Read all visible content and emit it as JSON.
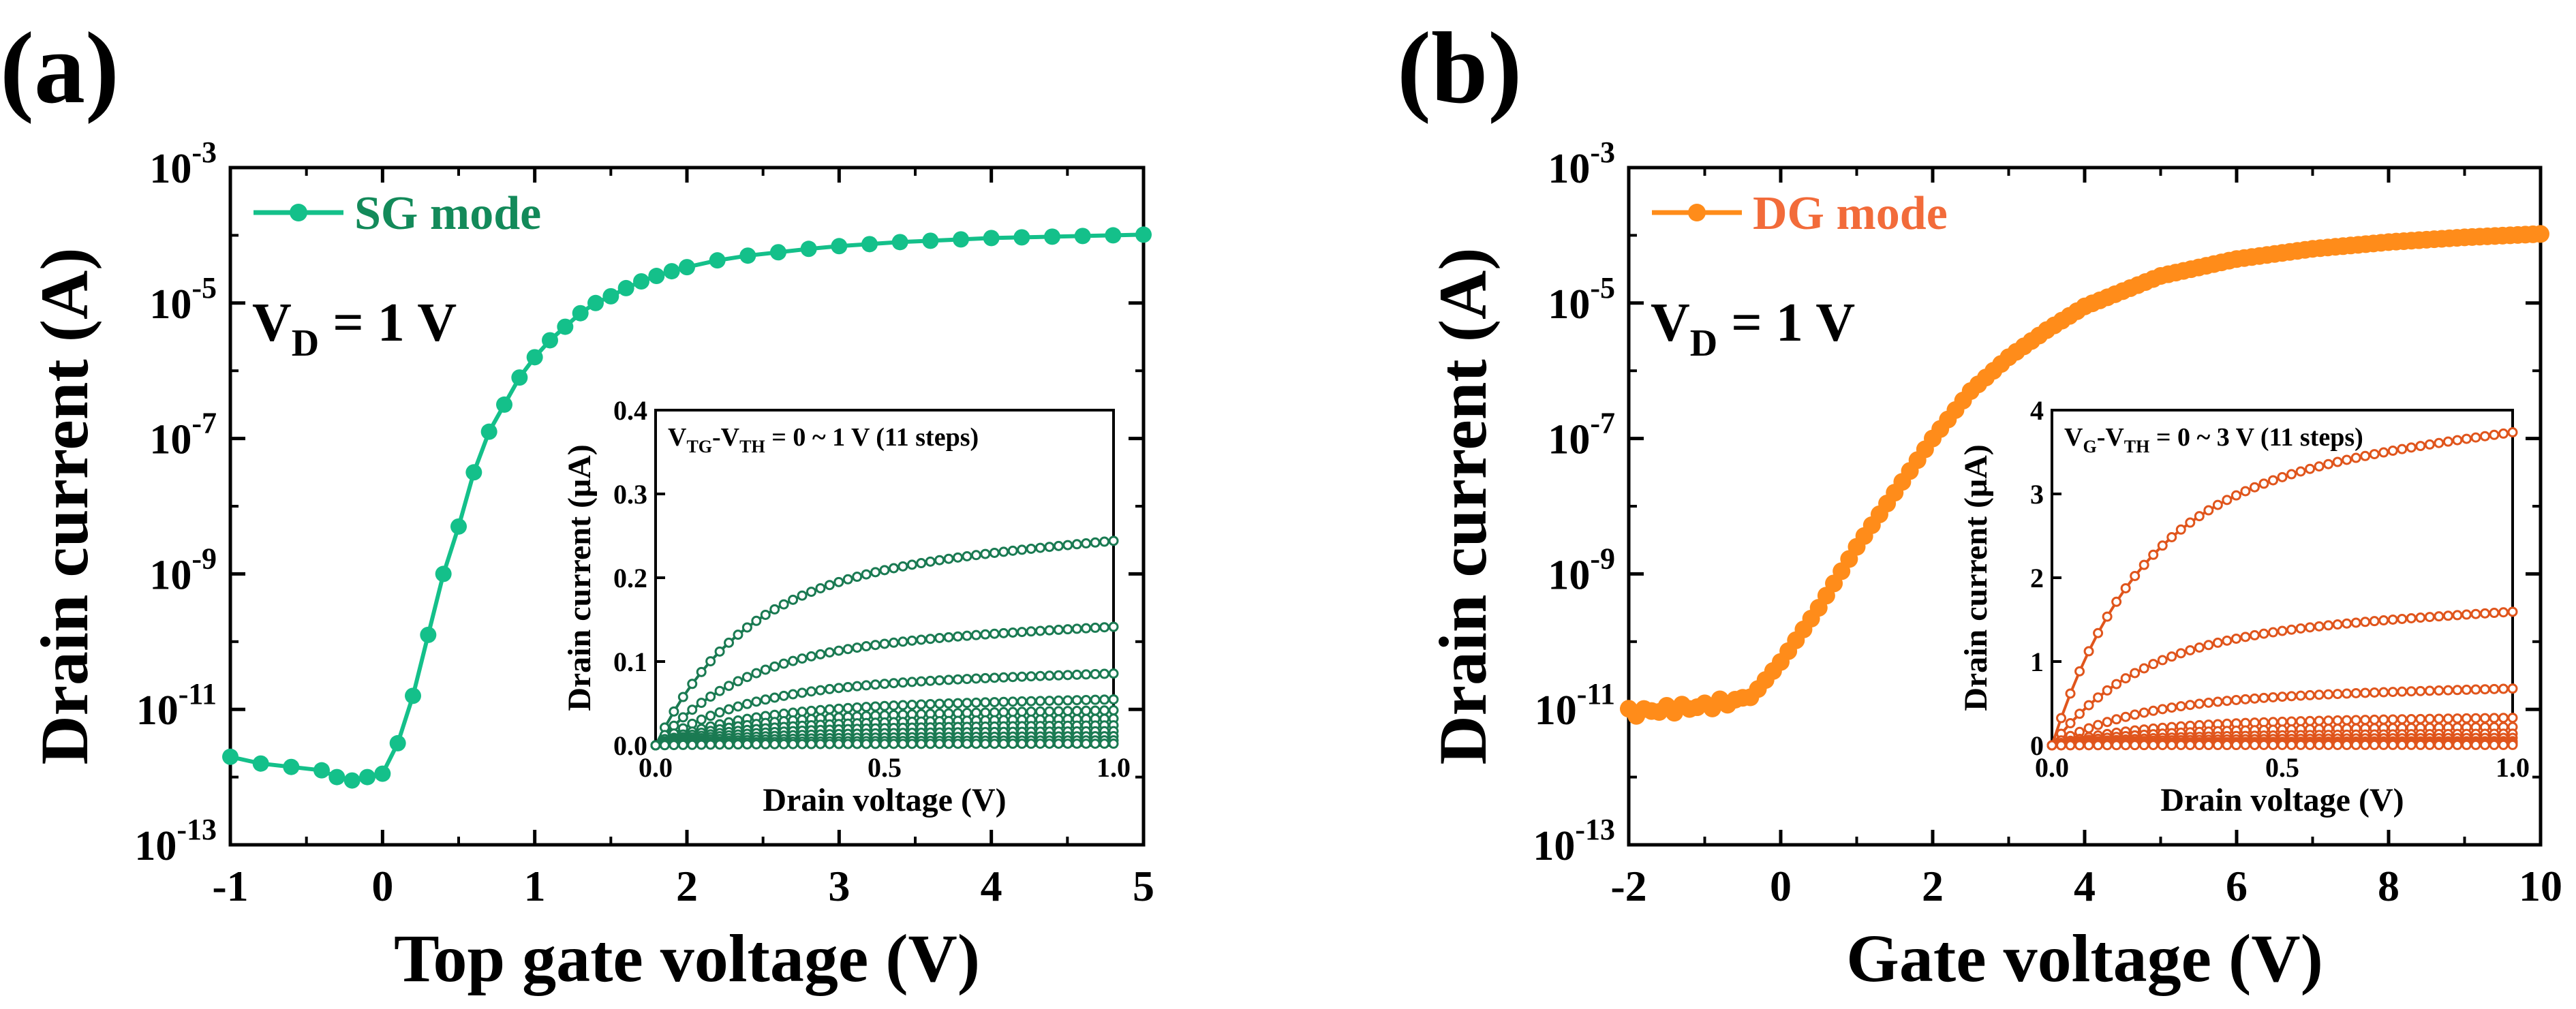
{
  "chart_data": [
    {
      "type": "line",
      "panel_label": "(a)",
      "title": "",
      "xlabel": "Top gate voltage (V)",
      "ylabel": "Drain current (A)",
      "xlim": [
        -1,
        5
      ],
      "ylim_log10": [
        -13,
        -3
      ],
      "y_scale": "log",
      "x_ticks": [
        -1,
        0,
        1,
        2,
        3,
        4,
        5
      ],
      "x_tick_labels": [
        "-1",
        "0",
        "1",
        "2",
        "3",
        "4",
        "5"
      ],
      "y_ticks_log10": [
        -13,
        -11,
        -9,
        -7,
        -5,
        -3
      ],
      "y_tick_labels": [
        {
          "base": "10",
          "exp": "-13"
        },
        {
          "base": "10",
          "exp": "-11"
        },
        {
          "base": "10",
          "exp": "-9"
        },
        {
          "base": "10",
          "exp": "-7"
        },
        {
          "base": "10",
          "exp": "-5"
        },
        {
          "base": "10",
          "exp": "-3"
        }
      ],
      "annotation": {
        "main": "V",
        "sub": "D",
        "rest": " = 1 V"
      },
      "legend_position": "top-left",
      "series": [
        {
          "name": "SG mode",
          "color": "#14c08a",
          "legend_text_color": "#138a5a",
          "x": [
            -1.0,
            -0.8,
            -0.6,
            -0.4,
            -0.3,
            -0.2,
            -0.1,
            0.0,
            0.1,
            0.2,
            0.3,
            0.4,
            0.5,
            0.6,
            0.7,
            0.8,
            0.9,
            1.0,
            1.1,
            1.2,
            1.3,
            1.4,
            1.5,
            1.6,
            1.7,
            1.8,
            1.9,
            2.0,
            2.2,
            2.4,
            2.6,
            2.8,
            3.0,
            3.2,
            3.4,
            3.6,
            3.8,
            4.0,
            4.2,
            4.4,
            4.6,
            4.8,
            5.0
          ],
          "log10_y": [
            -11.7,
            -11.8,
            -11.85,
            -11.9,
            -12.0,
            -12.05,
            -12.0,
            -11.95,
            -11.5,
            -10.8,
            -9.9,
            -9.0,
            -8.3,
            -7.5,
            -6.9,
            -6.5,
            -6.1,
            -5.8,
            -5.55,
            -5.35,
            -5.15,
            -5.0,
            -4.9,
            -4.78,
            -4.68,
            -4.6,
            -4.53,
            -4.47,
            -4.37,
            -4.3,
            -4.25,
            -4.2,
            -4.16,
            -4.13,
            -4.1,
            -4.08,
            -4.06,
            -4.04,
            -4.03,
            -4.02,
            -4.01,
            -4.0,
            -3.99
          ]
        }
      ],
      "inset": {
        "xlabel": "Drain voltage (V)",
        "ylabel": "Drain current (μA)",
        "xlim": [
          0,
          1.0
        ],
        "ylim": [
          0,
          0.4
        ],
        "x_tick_labels": [
          "0.0",
          "0.5",
          "1.0"
        ],
        "y_tick_labels": [
          "0.0",
          "0.1",
          "0.2",
          "0.3",
          "0.4"
        ],
        "annotation": {
          "p1": "V",
          "s1": "TG",
          "p2": "-V",
          "s2": "TH",
          "p3": " = 0 ~ 1 V (11 steps)"
        },
        "color": "#1a7a52",
        "curve_saturation_values": [
          0.245,
          0.142,
          0.086,
          0.055,
          0.042,
          0.032,
          0.024,
          0.017,
          0.011,
          0.006,
          0.002
        ]
      }
    },
    {
      "type": "line",
      "panel_label": "(b)",
      "title": "",
      "xlabel": "Gate voltage (V)",
      "ylabel": "Drain current (A)",
      "xlim": [
        -2,
        10
      ],
      "ylim_log10": [
        -13,
        -3
      ],
      "y_scale": "log",
      "x_ticks": [
        -2,
        0,
        2,
        4,
        6,
        8,
        10
      ],
      "x_tick_labels": [
        "-2",
        "0",
        "2",
        "4",
        "6",
        "8",
        "10"
      ],
      "y_ticks_log10": [
        -13,
        -11,
        -9,
        -7,
        -5,
        -3
      ],
      "y_tick_labels": [
        {
          "base": "10",
          "exp": "-13"
        },
        {
          "base": "10",
          "exp": "-11"
        },
        {
          "base": "10",
          "exp": "-9"
        },
        {
          "base": "10",
          "exp": "-7"
        },
        {
          "base": "10",
          "exp": "-5"
        },
        {
          "base": "10",
          "exp": "-3"
        }
      ],
      "annotation": {
        "main": "V",
        "sub": "D",
        "rest": " = 1 V"
      },
      "legend_position": "top-left",
      "series": [
        {
          "name": "DG mode",
          "color": "#ff8c1a",
          "legend_text_color": "#f26b3a",
          "x_points_note": "dense sampling from -2 to 10",
          "x": [
            -2.0,
            -1.5,
            -1.0,
            -0.5,
            -0.3,
            0.0,
            0.5,
            1.0,
            1.5,
            2.0,
            2.5,
            3.0,
            3.5,
            4.0,
            5.0,
            6.0,
            7.0,
            8.0,
            9.0,
            10.0
          ],
          "log10_y": [
            -11.05,
            -11.0,
            -10.95,
            -10.85,
            -10.7,
            -10.3,
            -9.5,
            -8.6,
            -7.8,
            -7.0,
            -6.3,
            -5.8,
            -5.4,
            -5.05,
            -4.6,
            -4.35,
            -4.2,
            -4.1,
            -4.03,
            -3.98
          ]
        }
      ],
      "inset": {
        "xlabel": "Drain voltage (V)",
        "ylabel": "Drain current (μA)",
        "xlim": [
          0,
          1.0
        ],
        "ylim": [
          0,
          4
        ],
        "x_tick_labels": [
          "0.0",
          "0.5",
          "1.0"
        ],
        "y_tick_labels": [
          "0",
          "1",
          "2",
          "3",
          "4"
        ],
        "annotation": {
          "p1": "V",
          "s1": "G",
          "p2": "-V",
          "s2": "TH",
          "p3": " = 0 ~ 3 V (11 steps)"
        },
        "color": "#e0551c",
        "curve_saturation_values": [
          3.75,
          1.6,
          0.68,
          0.33,
          0.22,
          0.14,
          0.09,
          0.05,
          0.03,
          0.015,
          0.005
        ]
      }
    }
  ]
}
